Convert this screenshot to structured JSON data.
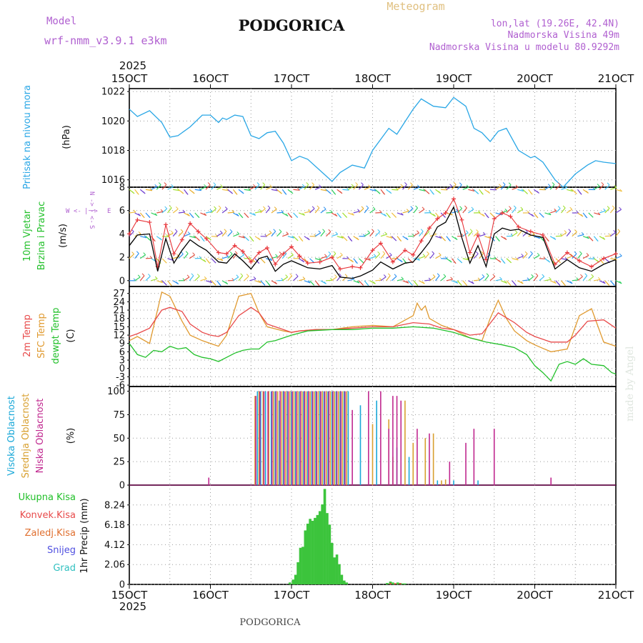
{
  "header": {
    "model_label": "Model",
    "model_name": "wrf-nmm_v3.9.1 e3km",
    "city": "PODGORICA",
    "meteogram": "Meteogram",
    "lonlat": "lon,lat (19.26E, 42.4N)",
    "altitude": "Nadmorska Visina 49m",
    "model_altitude": "Nadmorska Visina u modelu 80.9292m",
    "credit": "made by Angel",
    "footer_city": "PODGORICA"
  },
  "colors": {
    "pressure": "#2aa7e6",
    "wind_speed": "#000000",
    "gust": "#e8353a",
    "t2m": "#e84a4a",
    "sfc": "#e09a30",
    "dew": "#22c02a",
    "high_cloud": "#1aa8d8",
    "mid_cloud": "#d8a030",
    "low_cloud": "#c0288f",
    "precip": "#3cc43c",
    "title": "#b060d0",
    "gold": "#e0c080"
  },
  "chart_data": [
    {
      "id": "pressure",
      "type": "line",
      "year": "2025",
      "ylabel": [
        "Pritisak na nivou mora",
        "(hPa)"
      ],
      "xticks": [
        "15OCT",
        "16OCT",
        "17OCT",
        "18OCT",
        "19OCT",
        "20OCT",
        "21OCT"
      ],
      "ylim": [
        1015.5,
        1022.2
      ],
      "yticks": [
        "1016",
        "1018",
        "1020",
        "1022"
      ],
      "series": [
        {
          "name": "Pritisak",
          "x": [
            0,
            0.1,
            0.25,
            0.4,
            0.5,
            0.6,
            0.75,
            0.9,
            1.0,
            1.1,
            1.15,
            1.2,
            1.3,
            1.4,
            1.5,
            1.6,
            1.7,
            1.8,
            1.9,
            2.0,
            2.1,
            2.2,
            2.4,
            2.5,
            2.6,
            2.75,
            2.9,
            3.0,
            3.2,
            3.3,
            3.5,
            3.6,
            3.75,
            3.9,
            4.0,
            4.15,
            4.25,
            4.35,
            4.45,
            4.55,
            4.65,
            4.8,
            4.95,
            5.0,
            5.1,
            5.25,
            5.35,
            5.5,
            5.65,
            5.75,
            5.85,
            6.0
          ],
          "values": [
            1020.8,
            1020.3,
            1020.7,
            1019.9,
            1018.9,
            1019.0,
            1019.6,
            1020.4,
            1020.4,
            1019.9,
            1020.2,
            1020.1,
            1020.4,
            1020.3,
            1019.0,
            1018.8,
            1019.2,
            1019.3,
            1018.5,
            1017.3,
            1017.6,
            1017.4,
            1016.4,
            1015.9,
            1016.5,
            1017.0,
            1016.8,
            1018.0,
            1019.5,
            1019.1,
            1020.8,
            1021.5,
            1021.0,
            1020.9,
            1021.6,
            1021.0,
            1019.5,
            1019.2,
            1018.6,
            1019.3,
            1019.5,
            1018.0,
            1017.5,
            1017.6,
            1017.2,
            1016.0,
            1015.5,
            1016.4,
            1017.0,
            1017.3,
            1017.2,
            1017.1
          ]
        }
      ]
    },
    {
      "id": "wind",
      "type": "line",
      "ylabel": [
        "10m Vjetar",
        "Brzina i Pravac",
        "(m/s)"
      ],
      "compass": [
        "N",
        "->",
        "|",
        "<-",
        "S",
        "W",
        "<-",
        "|",
        "->",
        "E"
      ],
      "ylim": [
        -0.5,
        8
      ],
      "yticks": [
        "0",
        "2",
        "4",
        "6",
        "8"
      ],
      "series": [
        {
          "name": "Brzina",
          "x": [
            0,
            0.1,
            0.25,
            0.35,
            0.45,
            0.55,
            0.65,
            0.75,
            0.85,
            0.95,
            1.1,
            1.2,
            1.3,
            1.4,
            1.5,
            1.6,
            1.7,
            1.8,
            1.9,
            2.0,
            2.1,
            2.2,
            2.35,
            2.5,
            2.6,
            2.75,
            2.85,
            3.0,
            3.1,
            3.25,
            3.4,
            3.5,
            3.6,
            3.7,
            3.8,
            3.9,
            4.0,
            4.1,
            4.2,
            4.3,
            4.4,
            4.5,
            4.6,
            4.7,
            4.8,
            4.95,
            5.1,
            5.25,
            5.4,
            5.55,
            5.7,
            5.85,
            6.0
          ],
          "values": [
            3.0,
            3.9,
            4.0,
            0.8,
            3.6,
            1.5,
            2.6,
            3.5,
            3.0,
            2.6,
            1.6,
            1.5,
            2.3,
            1.7,
            1.0,
            1.9,
            2.1,
            0.8,
            1.4,
            1.7,
            1.4,
            1.1,
            1.0,
            1.3,
            0.3,
            0.2,
            0.4,
            0.9,
            1.6,
            1.0,
            1.5,
            1.6,
            2.4,
            3.3,
            4.6,
            5.0,
            6.3,
            3.7,
            1.5,
            3.0,
            1.2,
            4.0,
            4.5,
            4.3,
            4.4,
            3.9,
            3.7,
            1.0,
            1.8,
            1.1,
            0.8,
            1.4,
            1.8
          ]
        },
        {
          "name": "Udar",
          "x": [
            0,
            0.1,
            0.25,
            0.35,
            0.45,
            0.55,
            0.65,
            0.75,
            0.85,
            0.95,
            1.1,
            1.2,
            1.3,
            1.4,
            1.5,
            1.6,
            1.7,
            1.8,
            1.9,
            2.0,
            2.1,
            2.2,
            2.35,
            2.5,
            2.6,
            2.75,
            2.85,
            3.0,
            3.1,
            3.25,
            3.4,
            3.5,
            3.6,
            3.7,
            3.8,
            3.9,
            4.0,
            4.1,
            4.2,
            4.3,
            4.4,
            4.5,
            4.6,
            4.7,
            4.8,
            4.95,
            5.1,
            5.25,
            5.4,
            5.55,
            5.7,
            5.85,
            6.0
          ],
          "values": [
            4.0,
            5.2,
            5.0,
            1.2,
            4.8,
            2.3,
            3.5,
            4.9,
            4.2,
            3.6,
            2.4,
            2.3,
            3.0,
            2.5,
            1.6,
            2.4,
            2.8,
            1.4,
            2.3,
            2.9,
            2.1,
            1.5,
            1.6,
            2.0,
            1.0,
            1.2,
            1.1,
            2.6,
            3.2,
            1.6,
            2.6,
            2.2,
            3.4,
            4.5,
            5.3,
            5.8,
            7.0,
            5.2,
            2.4,
            3.9,
            1.8,
            5.3,
            5.8,
            5.5,
            4.6,
            4.2,
            3.9,
            1.4,
            2.4,
            1.7,
            1.2,
            1.9,
            2.3
          ]
        }
      ],
      "barb_rows": [
        0,
        1.9,
        3.8,
        5.8,
        7.8
      ]
    },
    {
      "id": "temperature",
      "type": "line",
      "ylabel": [
        "2m Temp",
        "SFC Temp",
        "dewpt Temp",
        "(C)"
      ],
      "ylim": [
        -6.5,
        29.5
      ],
      "yticks": [
        "27",
        "24",
        "21",
        "18",
        "15",
        "12",
        "9",
        "6",
        "3",
        "0",
        "-3",
        "-6"
      ],
      "series": [
        {
          "name": "2m Temp",
          "x": [
            0,
            0.1,
            0.25,
            0.4,
            0.5,
            0.65,
            0.75,
            0.9,
            1.0,
            1.1,
            1.2,
            1.35,
            1.5,
            1.6,
            1.7,
            1.9,
            2.0,
            2.1,
            2.3,
            2.5,
            2.75,
            3.0,
            3.25,
            3.5,
            3.7,
            3.85,
            4.0,
            4.2,
            4.35,
            4.55,
            4.75,
            4.9,
            5.0,
            5.2,
            5.4,
            5.5,
            5.65,
            5.85,
            6.0
          ],
          "values": [
            11.5,
            12.5,
            14.5,
            21.0,
            22.0,
            20.5,
            16.0,
            13.0,
            12.0,
            11.5,
            13.0,
            19.0,
            22.0,
            20.0,
            16.0,
            14.0,
            13.0,
            13.5,
            14.0,
            14.0,
            14.5,
            15.0,
            15.0,
            16.5,
            16.0,
            14.5,
            14.0,
            12.0,
            12.5,
            20.0,
            16.5,
            13.0,
            11.5,
            9.5,
            9.5,
            12.0,
            17.0,
            17.5,
            14.5
          ]
        },
        {
          "name": "SFC Temp",
          "x": [
            0,
            0.1,
            0.25,
            0.4,
            0.5,
            0.65,
            0.75,
            0.9,
            1.0,
            1.1,
            1.2,
            1.35,
            1.5,
            1.6,
            1.7,
            1.9,
            2.0,
            2.1,
            2.3,
            2.5,
            2.75,
            3.0,
            3.25,
            3.5,
            3.55,
            3.6,
            3.65,
            3.7,
            3.85,
            4.0,
            4.2,
            4.35,
            4.45,
            4.55,
            4.65,
            4.75,
            4.9,
            5.0,
            5.2,
            5.4,
            5.55,
            5.7,
            5.85,
            6.0
          ],
          "values": [
            10.0,
            11.5,
            9.0,
            27.5,
            26.0,
            17.0,
            12.0,
            10.0,
            9.0,
            8.0,
            12.0,
            26.0,
            27.0,
            20.0,
            15.0,
            13.5,
            13.0,
            13.5,
            14.0,
            14.0,
            15.0,
            15.5,
            15.0,
            19.0,
            23.5,
            21.0,
            22.5,
            18.0,
            15.5,
            14.0,
            11.0,
            10.0,
            18.0,
            24.5,
            18.0,
            13.5,
            10.0,
            8.5,
            6.0,
            7.0,
            19.0,
            21.5,
            9.5,
            8.0
          ]
        },
        {
          "name": "dewpt Temp",
          "x": [
            0,
            0.1,
            0.2,
            0.3,
            0.4,
            0.5,
            0.6,
            0.7,
            0.8,
            0.9,
            1.0,
            1.1,
            1.2,
            1.3,
            1.4,
            1.5,
            1.6,
            1.7,
            1.8,
            2.0,
            2.2,
            2.5,
            2.75,
            3.0,
            3.25,
            3.5,
            3.75,
            4.0,
            4.2,
            4.4,
            4.6,
            4.75,
            4.9,
            5.0,
            5.1,
            5.2,
            5.3,
            5.4,
            5.5,
            5.6,
            5.7,
            5.85,
            5.95,
            6.0
          ],
          "values": [
            9.0,
            5.0,
            4.0,
            6.5,
            6.0,
            8.0,
            7.0,
            7.5,
            5.0,
            4.0,
            3.5,
            2.5,
            4.0,
            5.5,
            6.5,
            7.0,
            7.0,
            9.5,
            10.0,
            12.0,
            13.5,
            14.0,
            14.0,
            14.5,
            14.5,
            15.0,
            14.5,
            13.0,
            11.0,
            9.5,
            8.5,
            7.5,
            5.0,
            1.0,
            -1.5,
            -4.5,
            1.5,
            2.5,
            1.5,
            3.5,
            1.5,
            1.0,
            -1.5,
            -2.0
          ]
        }
      ]
    },
    {
      "id": "clouds",
      "type": "bar",
      "ylabel": [
        "Visoka Oblacnost",
        "Srednja Oblacnost",
        "Niska Oblacnost",
        "(%)"
      ],
      "ylim": [
        0,
        105
      ],
      "yticks": [
        "0",
        "25",
        "50",
        "75",
        "100"
      ],
      "series": [
        {
          "name": "Visoka Oblacnost",
          "x": [
            1.58,
            1.62,
            1.68,
            1.75,
            1.8,
            1.85,
            1.9,
            1.95,
            2.0,
            2.05,
            2.1,
            2.15,
            2.2,
            2.25,
            2.3,
            2.35,
            2.4,
            2.45,
            2.5,
            2.55,
            2.6,
            2.65,
            2.7,
            2.85,
            3.05,
            3.3,
            3.45,
            3.8,
            4.0,
            4.3
          ],
          "values": [
            100,
            100,
            100,
            100,
            100,
            90,
            100,
            100,
            100,
            100,
            100,
            100,
            100,
            100,
            100,
            100,
            100,
            100,
            100,
            100,
            100,
            100,
            100,
            85,
            90,
            40,
            30,
            5,
            5,
            5
          ]
        },
        {
          "name": "Srednja Oblacnost",
          "x": [
            1.55,
            1.6,
            1.65,
            1.72,
            1.78,
            1.83,
            1.88,
            1.93,
            1.98,
            2.03,
            2.08,
            2.13,
            2.18,
            2.23,
            2.28,
            2.33,
            2.38,
            2.43,
            2.48,
            2.53,
            2.58,
            2.63,
            2.68,
            3.0,
            3.2,
            3.25,
            3.4,
            3.5,
            3.65,
            3.75,
            3.85,
            3.9
          ],
          "values": [
            95,
            100,
            100,
            100,
            100,
            100,
            100,
            100,
            100,
            100,
            100,
            100,
            100,
            100,
            100,
            100,
            100,
            100,
            100,
            100,
            100,
            100,
            100,
            65,
            70,
            30,
            90,
            45,
            50,
            55,
            5,
            6
          ]
        },
        {
          "name": "Niska Oblacnost",
          "x": [
            0.98,
            1.56,
            1.61,
            1.66,
            1.71,
            1.76,
            1.81,
            1.86,
            1.91,
            1.96,
            2.01,
            2.06,
            2.11,
            2.16,
            2.21,
            2.26,
            2.31,
            2.36,
            2.41,
            2.46,
            2.51,
            2.56,
            2.61,
            2.66,
            2.75,
            2.95,
            3.1,
            3.2,
            3.25,
            3.3,
            3.35,
            3.55,
            3.7,
            3.95,
            4.15,
            4.25,
            4.5,
            5.2
          ],
          "values": [
            8,
            95,
            100,
            100,
            100,
            100,
            100,
            100,
            100,
            100,
            100,
            100,
            100,
            100,
            100,
            100,
            100,
            100,
            100,
            100,
            100,
            100,
            100,
            100,
            80,
            100,
            100,
            60,
            95,
            95,
            90,
            60,
            55,
            25,
            45,
            60,
            60,
            8
          ]
        }
      ]
    },
    {
      "id": "precip",
      "type": "bar",
      "ylabel": [
        "1hr Precip (mm)"
      ],
      "legend": [
        "Ukupna Kisa",
        "Konvek.Kisa",
        "Zaledj.Kisa",
        "Snijeg",
        "Grad"
      ],
      "ylim": [
        0,
        10.3
      ],
      "yticks": [
        "0",
        "2.06",
        "4.12",
        "6.18",
        "8.24"
      ],
      "series": [
        {
          "name": "Ukupna Kisa",
          "x": [
            1.98,
            2.02,
            2.05,
            2.08,
            2.11,
            2.14,
            2.17,
            2.2,
            2.23,
            2.26,
            2.29,
            2.32,
            2.35,
            2.38,
            2.41,
            2.44,
            2.47,
            2.5,
            2.53,
            2.56,
            2.59,
            2.62,
            2.65,
            2.68,
            3.18,
            3.22,
            3.25,
            3.28,
            3.31,
            3.34,
            3.37,
            3.4
          ],
          "values": [
            0.2,
            0.5,
            1.0,
            2.3,
            3.8,
            3.9,
            5.6,
            6.3,
            6.8,
            6.6,
            6.9,
            7.2,
            7.6,
            8.3,
            9.9,
            7.4,
            6.2,
            4.3,
            2.8,
            3.1,
            2.1,
            1.0,
            0.4,
            0.2,
            0.15,
            0.3,
            0.2,
            0.1,
            0.2,
            0.15,
            0.1,
            0.1
          ]
        },
        {
          "name": "Konvek.Kisa",
          "x": [
            3.22,
            3.28,
            3.34
          ],
          "values": [
            0.05,
            0.05,
            0.05
          ]
        }
      ]
    }
  ]
}
